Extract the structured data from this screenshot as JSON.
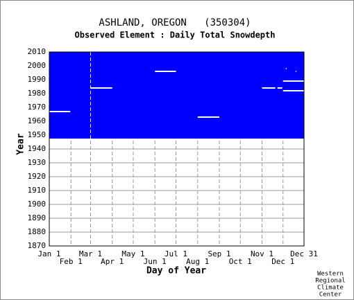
{
  "chart_data": {
    "type": "availability",
    "title": "ASHLAND, OREGON   (350304)",
    "subtitle": "Observed Element : Daily Total Snowdepth",
    "x_label": "Day of Year",
    "y_label": "Year",
    "footer": [
      "Western",
      "Regional",
      "Climate",
      "Center"
    ],
    "color": "#0000ff",
    "coverage_years": [
      1948,
      2010
    ],
    "gaps": [
      {
        "year": 1967,
        "days": [
          1,
          31
        ]
      },
      {
        "year": 1984,
        "days": [
          60,
          91
        ]
      },
      {
        "year": 1996,
        "days": [
          152,
          182
        ]
      },
      {
        "year": 1963,
        "days": [
          213,
          244
        ]
      },
      {
        "year": 1984,
        "days": [
          305,
          324
        ]
      },
      {
        "year": 1984,
        "days": [
          327,
          334
        ]
      },
      {
        "year": 1982,
        "days": [
          335,
          365
        ]
      },
      {
        "year": 1989,
        "days": [
          335,
          365
        ]
      },
      {
        "year": 1998,
        "days": [
          339,
          340
        ]
      },
      {
        "year": 1996,
        "days": [
          353,
          354
        ]
      }
    ],
    "xlim": [
      1,
      365
    ],
    "ylim": [
      1870,
      2010
    ],
    "xticks": [
      {
        "value": 1,
        "label": "Jan 1"
      },
      {
        "value": 32,
        "label": "Feb 1"
      },
      {
        "value": 60,
        "label": "Mar 1"
      },
      {
        "value": 91,
        "label": "Apr 1"
      },
      {
        "value": 121,
        "label": "May 1"
      },
      {
        "value": 152,
        "label": "Jun 1"
      },
      {
        "value": 182,
        "label": "Jul 1"
      },
      {
        "value": 213,
        "label": "Aug 1"
      },
      {
        "value": 244,
        "label": "Sep 1"
      },
      {
        "value": 274,
        "label": "Oct 1"
      },
      {
        "value": 305,
        "label": "Nov 1"
      },
      {
        "value": 335,
        "label": "Dec 1"
      },
      {
        "value": 365,
        "label": "Dec 31"
      }
    ],
    "yticks": [
      1870,
      1880,
      1890,
      1900,
      1910,
      1920,
      1930,
      1940,
      1950,
      1960,
      1970,
      1980,
      1990,
      2000,
      2010
    ],
    "grid": true
  }
}
